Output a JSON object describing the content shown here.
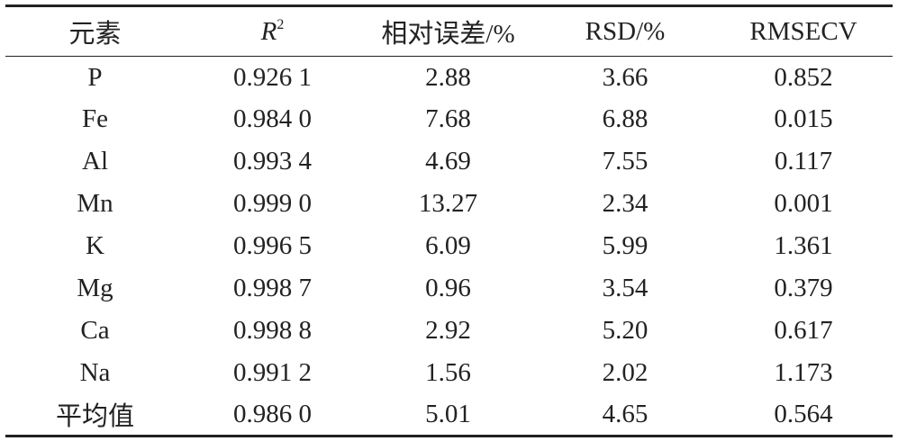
{
  "table": {
    "header": [
      "元素",
      {
        "base": "R",
        "sup": "2"
      },
      "相对误差/%",
      "RSD/%",
      "RMSECV"
    ],
    "rows": [
      [
        "P",
        "0.926 1",
        "2.88",
        "3.66",
        "0.852"
      ],
      [
        "Fe",
        "0.984 0",
        "7.68",
        "6.88",
        "0.015"
      ],
      [
        "Al",
        "0.993 4",
        "4.69",
        "7.55",
        "0.117"
      ],
      [
        "Mn",
        "0.999 0",
        "13.27",
        "2.34",
        "0.001"
      ],
      [
        "K",
        "0.996 5",
        "6.09",
        "5.99",
        "1.361"
      ],
      [
        "Mg",
        "0.998 7",
        "0.96",
        "3.54",
        "0.379"
      ],
      [
        "Ca",
        "0.998 8",
        "2.92",
        "5.20",
        "0.617"
      ],
      [
        "Na",
        "0.991 2",
        "1.56",
        "2.02",
        "1.173"
      ],
      [
        "平均值",
        "0.986 0",
        "5.01",
        "4.65",
        "0.564"
      ]
    ]
  }
}
